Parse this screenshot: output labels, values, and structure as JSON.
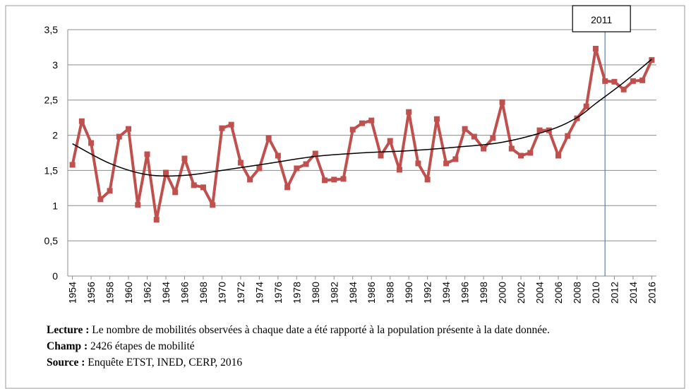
{
  "chart_data": {
    "type": "line",
    "x": [
      1954,
      1955,
      1956,
      1957,
      1958,
      1959,
      1960,
      1961,
      1962,
      1963,
      1964,
      1965,
      1966,
      1967,
      1968,
      1969,
      1970,
      1971,
      1972,
      1973,
      1974,
      1975,
      1976,
      1977,
      1978,
      1979,
      1980,
      1981,
      1982,
      1983,
      1984,
      1985,
      1986,
      1987,
      1988,
      1989,
      1990,
      1991,
      1992,
      1993,
      1994,
      1995,
      1996,
      1997,
      1998,
      1999,
      2000,
      2001,
      2002,
      2003,
      2004,
      2005,
      2006,
      2007,
      2008,
      2009,
      2010,
      2011,
      2012,
      2013,
      2014,
      2015,
      2016
    ],
    "series": [
      {
        "color": "#c0504d",
        "values": [
          1.58,
          2.2,
          1.89,
          1.09,
          1.21,
          1.98,
          2.09,
          1.01,
          1.73,
          0.8,
          1.47,
          1.19,
          1.67,
          1.29,
          1.26,
          1.01,
          2.1,
          2.15,
          1.61,
          1.37,
          1.53,
          1.96,
          1.71,
          1.26,
          1.53,
          1.59,
          1.74,
          1.36,
          1.37,
          1.38,
          2.08,
          2.17,
          2.21,
          1.71,
          1.92,
          1.51,
          2.33,
          1.6,
          1.37,
          2.23,
          1.6,
          1.66,
          2.09,
          1.98,
          1.81,
          1.96,
          2.47,
          1.81,
          1.71,
          1.75,
          2.07,
          2.07,
          1.71,
          1.99,
          2.24,
          2.41,
          3.23,
          2.77,
          2.76,
          2.65,
          2.77,
          2.78,
          3.07
        ]
      }
    ],
    "trend": {
      "color": "#000000",
      "x": [
        1954,
        1958,
        1962,
        1966,
        1970,
        1975,
        1980,
        1985,
        1990,
        1995,
        2000,
        2005,
        2008,
        2010,
        2013,
        2016
      ],
      "values": [
        1.88,
        1.6,
        1.44,
        1.43,
        1.5,
        1.6,
        1.7,
        1.75,
        1.78,
        1.83,
        1.9,
        2.07,
        2.25,
        2.45,
        2.75,
        3.08
      ]
    },
    "xlim": [
      1953.5,
      2016.5
    ],
    "xticks": [
      1954,
      1956,
      1958,
      1960,
      1962,
      1964,
      1966,
      1968,
      1970,
      1972,
      1974,
      1976,
      1978,
      1980,
      1982,
      1984,
      1986,
      1988,
      1990,
      1992,
      1994,
      1996,
      1998,
      2000,
      2002,
      2004,
      2006,
      2008,
      2010,
      2012,
      2014,
      2016
    ],
    "ylim": [
      0,
      3.5
    ],
    "yticks": [
      0,
      {
        "value": 0.5,
        "label": "0,5"
      },
      1,
      {
        "value": 1.5,
        "label": "1,5"
      },
      2,
      {
        "value": 2.5,
        "label": "2,5"
      },
      3,
      {
        "value": 3.5,
        "label": "3,5"
      }
    ],
    "grid": true,
    "annotation": {
      "label": "2011",
      "x": 2011,
      "color": "#4f81bd"
    },
    "notes": [
      {
        "label": "Lecture :",
        "text": "Le nombre de mobilités observées à chaque date a été rapporté à la population présente à la date donnée."
      },
      {
        "label": "Champ :",
        "text": "2426 étapes de mobilité"
      },
      {
        "label": "Source :",
        "text": "Enquête ETST, INED, CERP, 2016"
      }
    ]
  }
}
